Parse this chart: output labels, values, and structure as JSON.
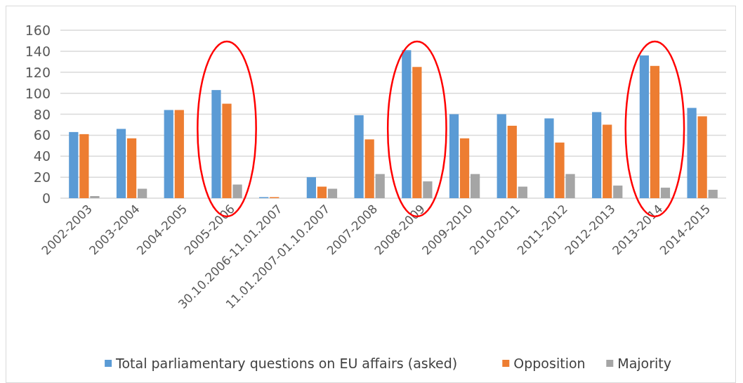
{
  "chart_data": {
    "type": "bar",
    "categories": [
      "2002-2003",
      "2003-2004",
      "2004-2005",
      "2005-2006",
      "30.10.2006-11.01.2007",
      "11.01.2007-01.10.2007",
      "2007-2008",
      "2008-2009",
      "2009-2010",
      "2010-2011",
      "2011-2012",
      "2012-2013",
      "2013-2014",
      "2014-2015"
    ],
    "series": [
      {
        "name": "Total parliamentary questions on EU affairs (asked)",
        "color": "#5b9bd5",
        "values": [
          63,
          66,
          84,
          103,
          1,
          20,
          79,
          141,
          80,
          80,
          76,
          82,
          136,
          86
        ]
      },
      {
        "name": "Opposition",
        "color": "#ed7d31",
        "values": [
          61,
          57,
          84,
          90,
          1,
          11,
          56,
          125,
          57,
          69,
          53,
          70,
          126,
          78
        ]
      },
      {
        "name": "Majority",
        "color": "#a5a5a5",
        "values": [
          2,
          9,
          0,
          13,
          0,
          9,
          23,
          16,
          23,
          11,
          23,
          12,
          10,
          8
        ]
      }
    ],
    "ylim": [
      0,
      160
    ],
    "yticks": [
      0,
      20,
      40,
      60,
      80,
      100,
      120,
      140,
      160
    ],
    "grid": "y",
    "legend": "bottom"
  }
}
